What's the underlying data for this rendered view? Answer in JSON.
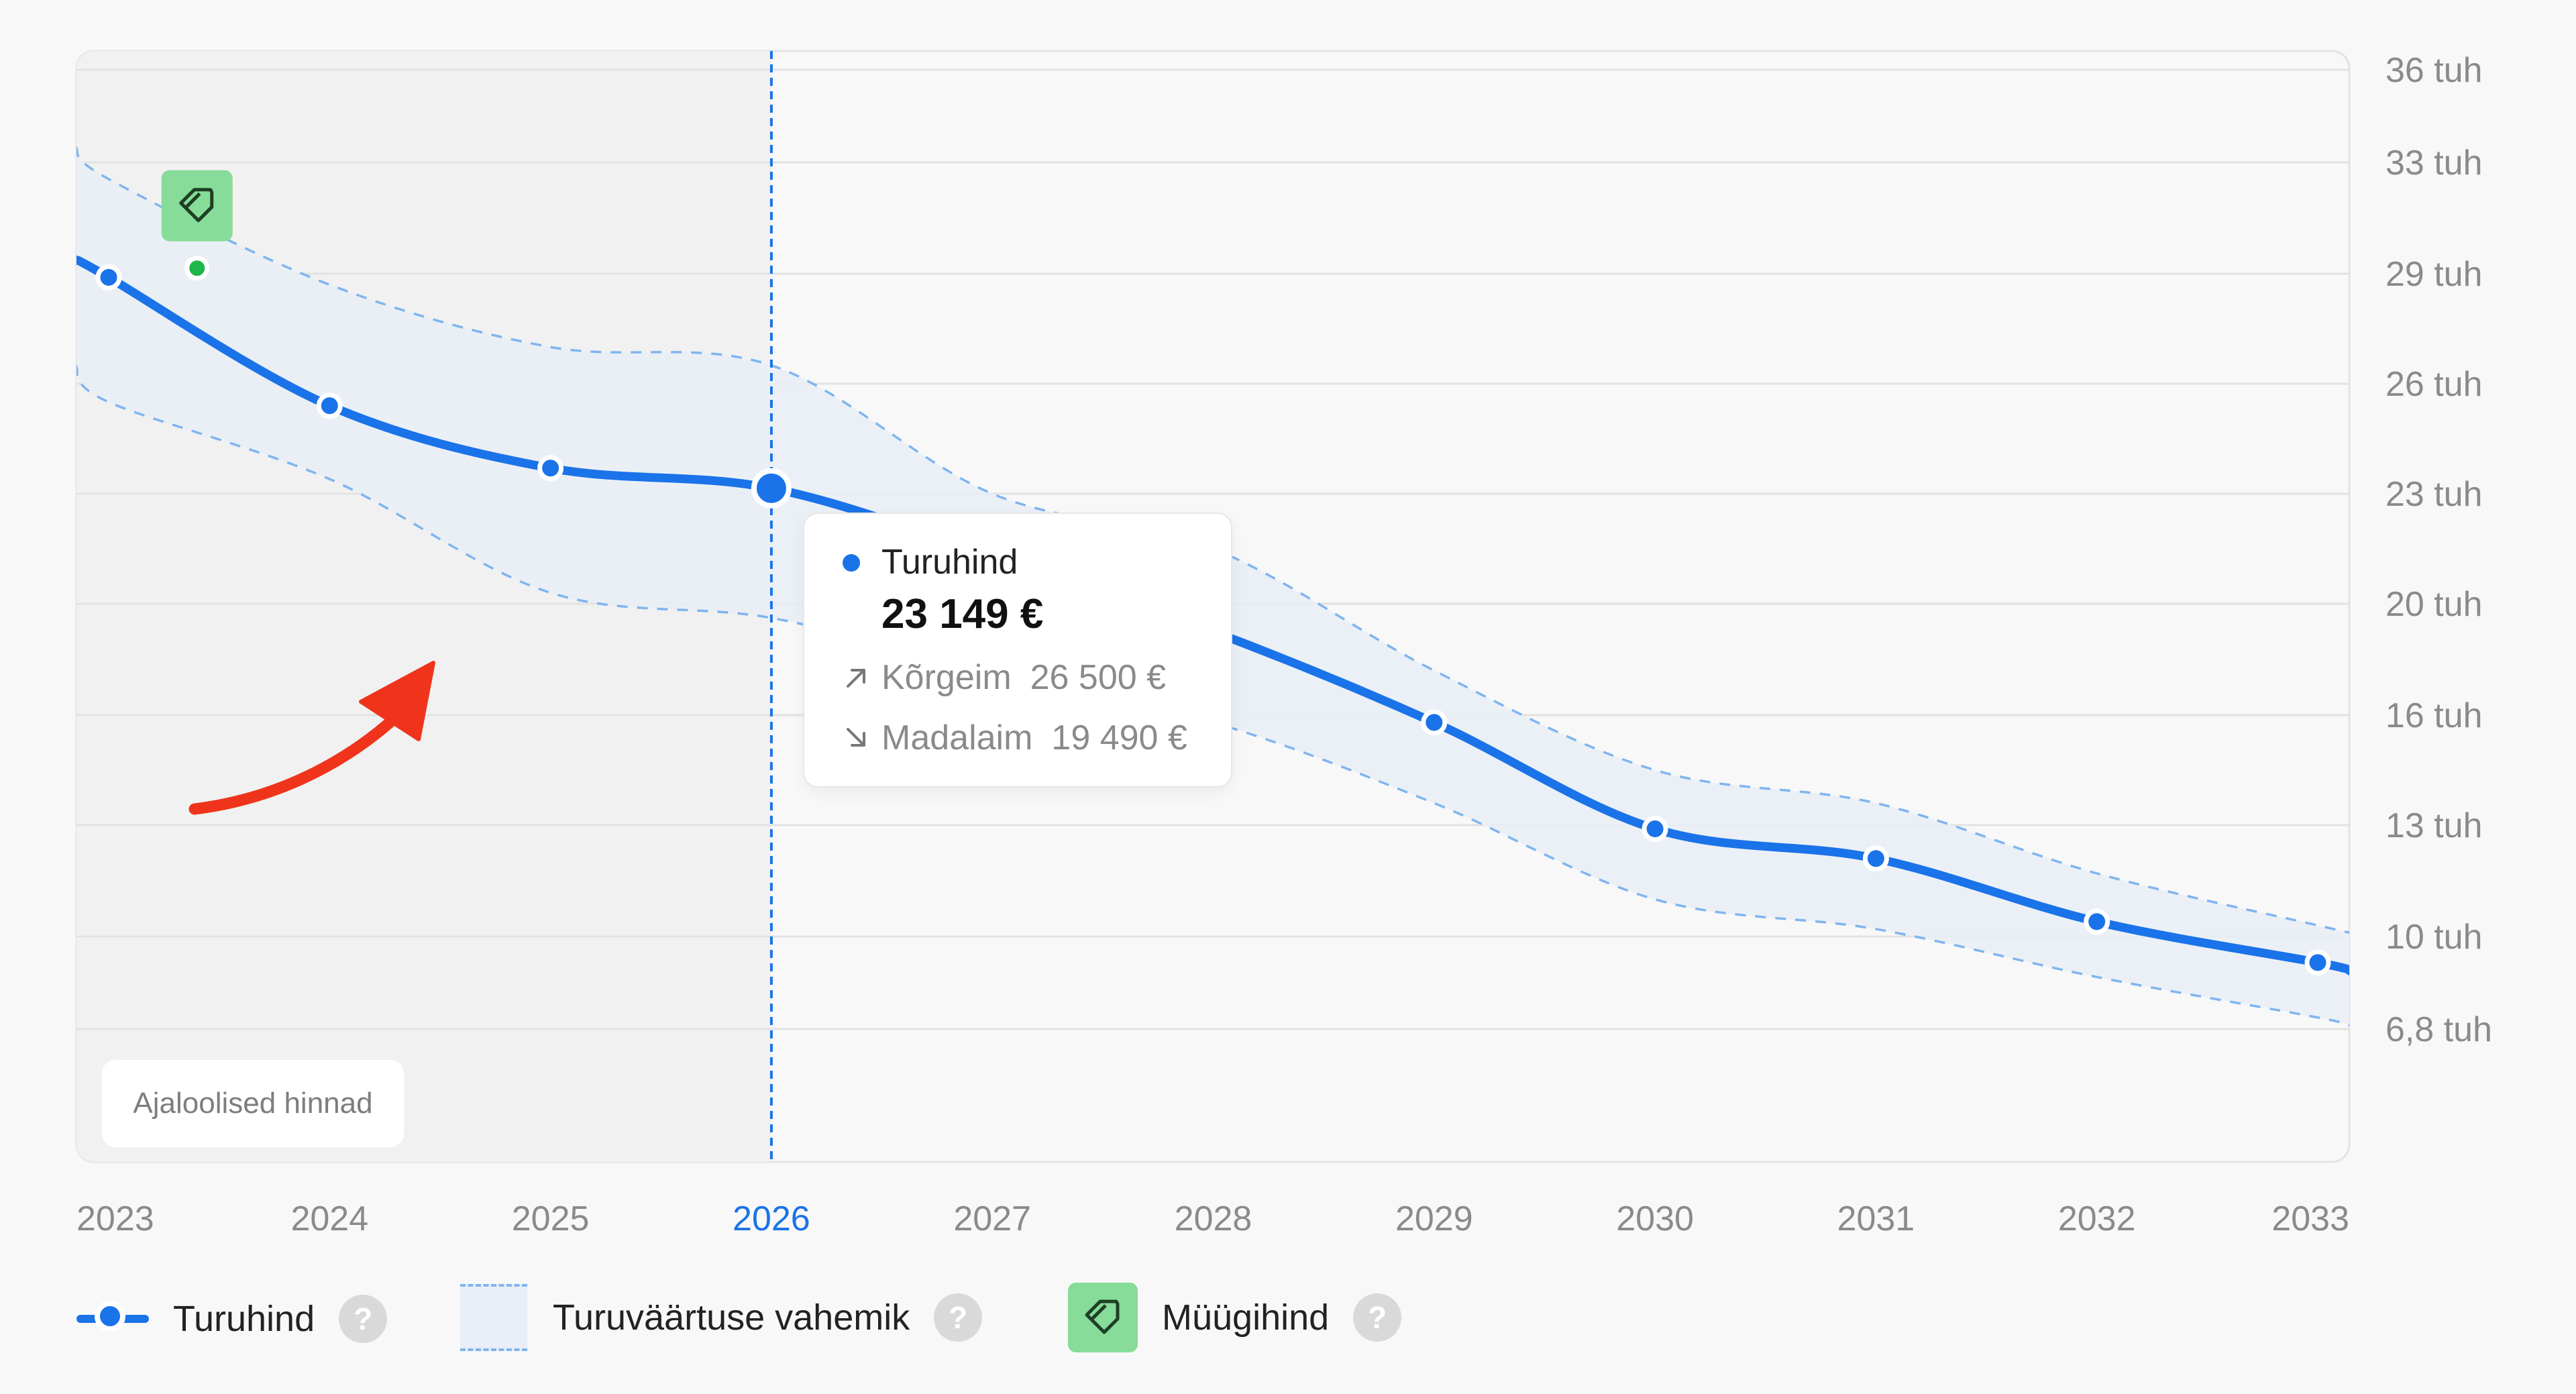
{
  "chart_data": {
    "type": "line",
    "x": [
      2023,
      2024,
      2025,
      2026,
      2027,
      2028,
      2029,
      2030,
      2031,
      2032,
      2033
    ],
    "x_tick_labels": [
      "2023",
      "2024",
      "2025",
      "2026",
      "2027",
      "2028",
      "2029",
      "2030",
      "2031",
      "2032",
      "2033"
    ],
    "y_tick_values": [
      6.8,
      10,
      13,
      16,
      20,
      23,
      26,
      29,
      33,
      36
    ],
    "y_tick_labels": [
      "6,8 tuh",
      "10 tuh",
      "13 tuh",
      "16 tuh",
      "20 tuh",
      "23 tuh",
      "26 tuh",
      "29 tuh",
      "33 tuh",
      "36 tuh"
    ],
    "y_unit": "tuh",
    "ylim": [
      6.8,
      36
    ],
    "grid": true,
    "y_axis_side": "right",
    "series": [
      {
        "name": "Turuhind",
        "color": "#1a73e8",
        "x": [
          2022.85,
          2023,
          2024,
          2025,
          2026,
          2027,
          2028,
          2029,
          2030,
          2031,
          2032,
          2033,
          2033.15
        ],
        "values": [
          29.5,
          28.9,
          25.4,
          23.7,
          23.149,
          21.3,
          19.0,
          15.8,
          12.9,
          12.1,
          10.4,
          9.1,
          8.8
        ],
        "markers": [
          2023,
          2024,
          2025,
          2026,
          2029,
          2030,
          2031,
          2032,
          2033
        ]
      }
    ],
    "band": {
      "name": "Turuväärtuse vahemik",
      "x": [
        2022.85,
        2023,
        2024,
        2025,
        2026,
        2027,
        2028,
        2029,
        2030,
        2031,
        2032,
        2033,
        2033.15
      ],
      "upper": [
        33.5,
        32.4,
        28.7,
        27.0,
        26.5,
        23.0,
        21.5,
        17.6,
        14.5,
        13.6,
        11.7,
        10.3,
        10.1
      ],
      "lower": [
        26.5,
        25.5,
        23.4,
        20.3,
        19.49,
        17.5,
        15.8,
        13.6,
        11.0,
        10.2,
        8.6,
        7.2,
        6.9
      ]
    },
    "sale_price": {
      "name": "Müügihind",
      "x": 2023.4,
      "value": 29.2,
      "color": "#1fb64a"
    },
    "historical_until": 2026,
    "highlight_x": 2026,
    "highlight_color": "#1a73e8",
    "tooltip": {
      "series_label": "Turuhind",
      "value": "23 149 €",
      "high_label": "Kõrgeim",
      "high_value": "26 500 €",
      "low_label": "Madalaim",
      "low_value": "19 490 €"
    },
    "historical_label": "Ajaloolised hinnad",
    "legend": [
      {
        "label": "Turuhind",
        "icon": "line-dot-icon"
      },
      {
        "label": "Turuväärtuse vahemik",
        "icon": "dashed-range-icon"
      },
      {
        "label": "Müügihind",
        "icon": "price-tag-icon"
      }
    ],
    "annotation": "red-curved-arrow-icon"
  },
  "colors": {
    "background": "#f8f8f8",
    "historical_shade": "#f1f1f1",
    "line": "#1a73e8",
    "band_fill": "#e9eef7",
    "band_stroke": "#7fb5ef",
    "grid": "#e2e2e2",
    "axis_text": "#8a8a8a",
    "tag_bg": "#86dc98",
    "arrow": "#f0341b"
  },
  "legend_help_glyph": "?"
}
